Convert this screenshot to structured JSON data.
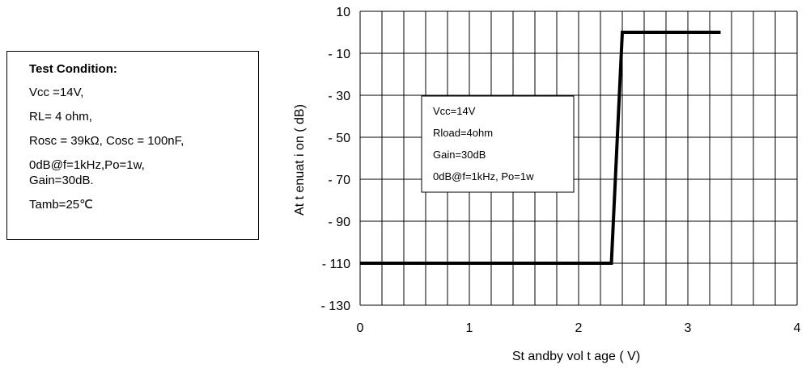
{
  "test_condition": {
    "title": "Test Condition:",
    "lines": [
      "Vcc =14V,",
      "RL= 4 ohm,",
      "Rosc = 39kΩ, Cosc = 100nF,",
      "0dB@f=1kHz,Po=1w,\nGain=30dB.",
      "Tamb=25℃"
    ]
  },
  "chart_data": {
    "type": "line",
    "xlabel": "St andby  vol t age  ( V)",
    "ylabel": "At t enuat i on  ( dB)",
    "xlim": [
      0,
      4
    ],
    "ylim": [
      -130,
      10
    ],
    "x_ticks": [
      "0",
      "1",
      "2",
      "3",
      "4"
    ],
    "y_ticks": [
      "10",
      "- 10",
      "- 30",
      "- 50",
      "- 70",
      "- 90",
      "- 110",
      "- 130"
    ],
    "y_tick_values": [
      10,
      -10,
      -30,
      -50,
      -70,
      -90,
      -110,
      -130
    ],
    "grid": true,
    "minor_x_divisions": 5,
    "series": [
      {
        "x": [
          0,
          2.3,
          2.4,
          3.3
        ],
        "y": [
          -110,
          -110,
          0,
          0
        ],
        "color": "#000000"
      }
    ],
    "annotation": [
      "Vcc=14V",
      "Rload=4ohm",
      "Gain=30dB",
      "0dB@f=1kHz, Po=1w"
    ]
  }
}
